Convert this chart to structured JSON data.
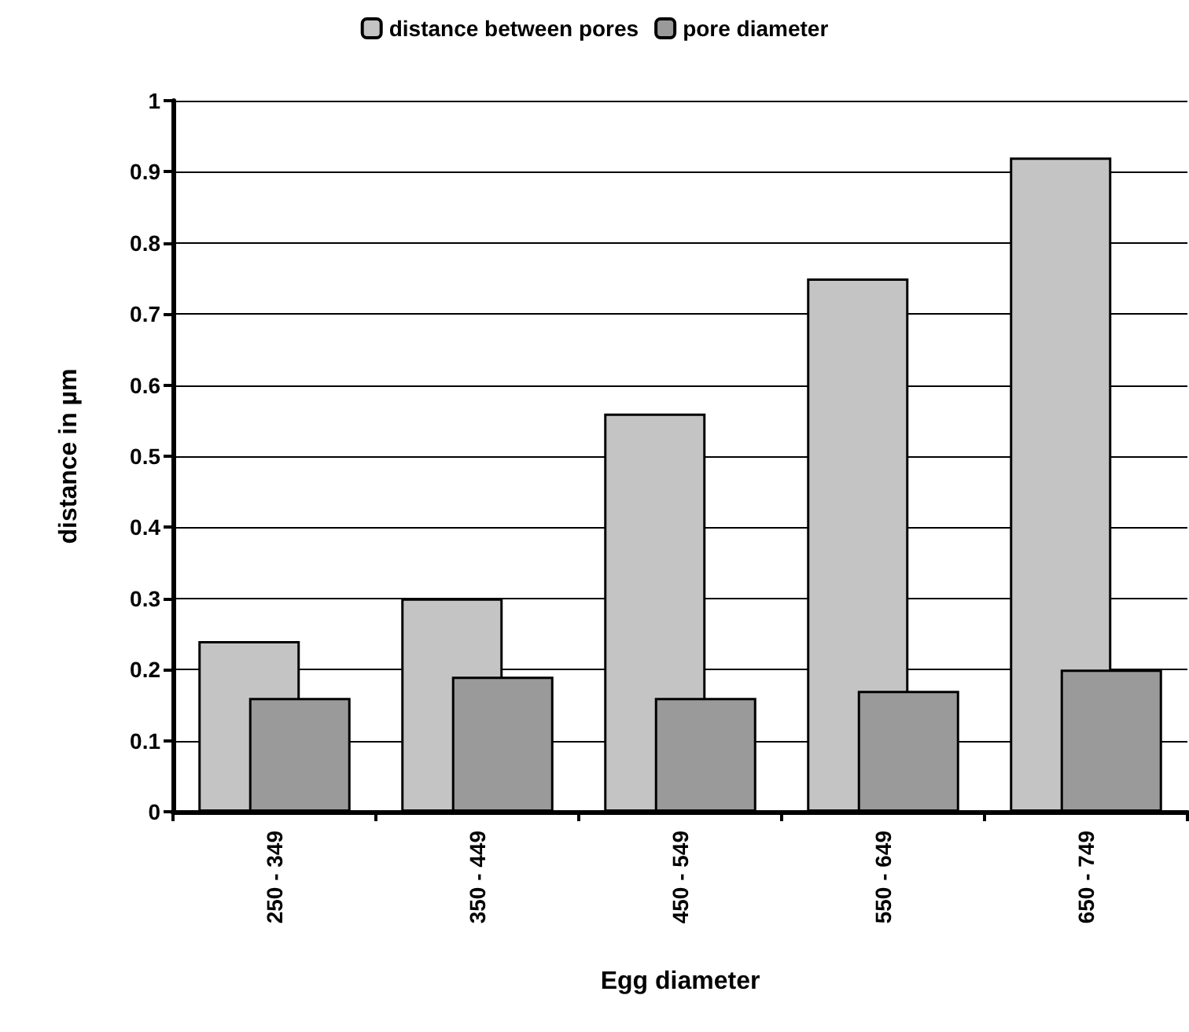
{
  "chart_data": {
    "type": "bar",
    "xlabel": "Egg diameter",
    "ylabel": "distance in µm",
    "categories": [
      "250 - 349",
      "350 - 449",
      "450 - 549",
      "550 - 649",
      "650 - 749"
    ],
    "series": [
      {
        "name": "distance between pores",
        "color": "#c4c4c4",
        "values": [
          0.24,
          0.3,
          0.56,
          0.75,
          0.92
        ]
      },
      {
        "name": "pore diameter",
        "color": "#9a9a9a",
        "values": [
          0.16,
          0.19,
          0.16,
          0.17,
          0.2
        ]
      }
    ],
    "ylim": [
      0,
      1
    ],
    "yticks": [
      0,
      0.1,
      0.2,
      0.3,
      0.4,
      0.5,
      0.6,
      0.7,
      0.8,
      0.9,
      1
    ],
    "grid": "y",
    "legend": "top"
  }
}
